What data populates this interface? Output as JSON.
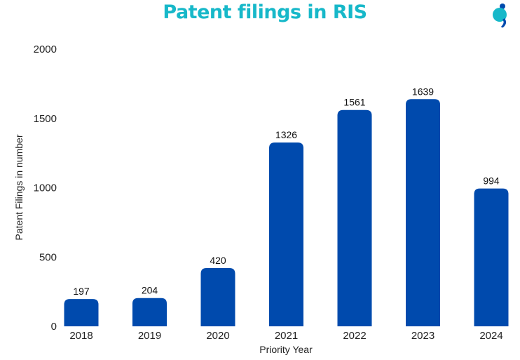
{
  "chart_data": {
    "type": "bar",
    "title": "Patent filings in RIS",
    "xlabel": "Priority Year",
    "ylabel": "Patent Filings in number",
    "categories": [
      "2018",
      "2019",
      "2020",
      "2021",
      "2022",
      "2023",
      "2024"
    ],
    "values": [
      197,
      204,
      420,
      1326,
      1561,
      1639,
      994
    ],
    "ylim": [
      0,
      2000
    ],
    "yticks": [
      0,
      500,
      1000,
      1500,
      2000
    ],
    "grid": false,
    "bar_color": "#004aad",
    "title_color": "#17b8c9"
  },
  "logo": {
    "icon": "brand-logo-icon"
  }
}
